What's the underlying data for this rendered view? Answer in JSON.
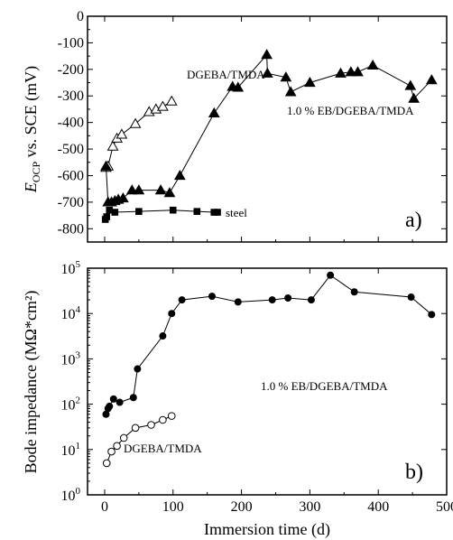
{
  "chart_data": [
    {
      "type": "line",
      "panel_label": "a)",
      "ylabel_main": "E",
      "ylabel_sub": "OCP",
      "ylabel_rest": " vs. SCE (mV)",
      "xlim": [
        -25,
        500
      ],
      "ylim": [
        -850,
        0
      ],
      "xticks": [
        0,
        100,
        200,
        300,
        400,
        500
      ],
      "yticks": [
        0,
        -100,
        -200,
        -300,
        -400,
        -500,
        -600,
        -700,
        -800
      ],
      "ytick_labels": [
        "0",
        "-100",
        "-200",
        "-300",
        "-400",
        "-500",
        "-600",
        "-700",
        "-800"
      ],
      "series": [
        {
          "name": "DGEBA/TMDA",
          "marker": "open-triangle",
          "x": [
            2,
            5,
            12,
            18,
            25,
            45,
            65,
            75,
            85,
            98
          ],
          "y": [
            -570,
            -565,
            -490,
            -460,
            -445,
            -405,
            -360,
            -350,
            -340,
            -320
          ]
        },
        {
          "name": "1.0 % EB/DGEBA/TMDA",
          "marker": "filled-triangle",
          "x": [
            2,
            5,
            10,
            15,
            20,
            27,
            40,
            50,
            82,
            95,
            110,
            160,
            187,
            195,
            237,
            238,
            265,
            272,
            300,
            345,
            360,
            370,
            392,
            447,
            452,
            478
          ],
          "y": [
            -565,
            -700,
            -700,
            -695,
            -690,
            -685,
            -655,
            -655,
            -655,
            -665,
            -600,
            -365,
            -265,
            -268,
            -145,
            -215,
            -230,
            -285,
            -250,
            -215,
            -210,
            -210,
            -185,
            -262,
            -310,
            -240
          ]
        },
        {
          "name": "steel",
          "marker": "filled-square",
          "x": [
            1,
            3,
            7,
            15,
            50,
            100,
            135,
            160,
            165
          ],
          "y": [
            -765,
            -755,
            -730,
            -738,
            -735,
            -730,
            -735,
            -738,
            -738
          ]
        }
      ],
      "annotations": [
        "DGEBA/TMDA",
        "1.0 % EB/DGEBA/TMDA",
        "steel"
      ]
    },
    {
      "type": "line",
      "panel_label": "b)",
      "ylabel": "Bode impedance (MΩ*cm²)",
      "xlabel": "Immersion time (d)",
      "yscale": "log",
      "xlim": [
        -25,
        500
      ],
      "ylim": [
        1,
        100000
      ],
      "xticks": [
        0,
        100,
        200,
        300,
        400,
        500
      ],
      "xtick_labels": [
        "0",
        "100",
        "200",
        "300",
        "400",
        "500"
      ],
      "yticks": [
        1,
        10,
        100,
        1000,
        10000,
        100000
      ],
      "ytick_exponents": [
        "0",
        "1",
        "2",
        "3",
        "4",
        "5"
      ],
      "ytick_base": "10",
      "series": [
        {
          "name": "1.0 % EB/DGEBA/TMDA",
          "marker": "filled-circle",
          "x": [
            2,
            5,
            7,
            13,
            22,
            42,
            48,
            85,
            98,
            113,
            157,
            195,
            245,
            268,
            302,
            330,
            365,
            448,
            478
          ],
          "y": [
            60,
            80,
            90,
            130,
            110,
            140,
            600,
            3200,
            10000,
            20000,
            24000,
            18000,
            20000,
            22000,
            20000,
            70000,
            30000,
            23000,
            9500
          ]
        },
        {
          "name": "DGEBA/TMDA",
          "marker": "open-circle",
          "x": [
            3,
            10,
            18,
            28,
            45,
            68,
            85,
            98
          ],
          "y": [
            5,
            9,
            12,
            18,
            30,
            35,
            45,
            55
          ]
        }
      ],
      "annotations": [
        "1.0 % EB/DGEBA/TMDA",
        "DGEBA/TMDA"
      ]
    }
  ]
}
